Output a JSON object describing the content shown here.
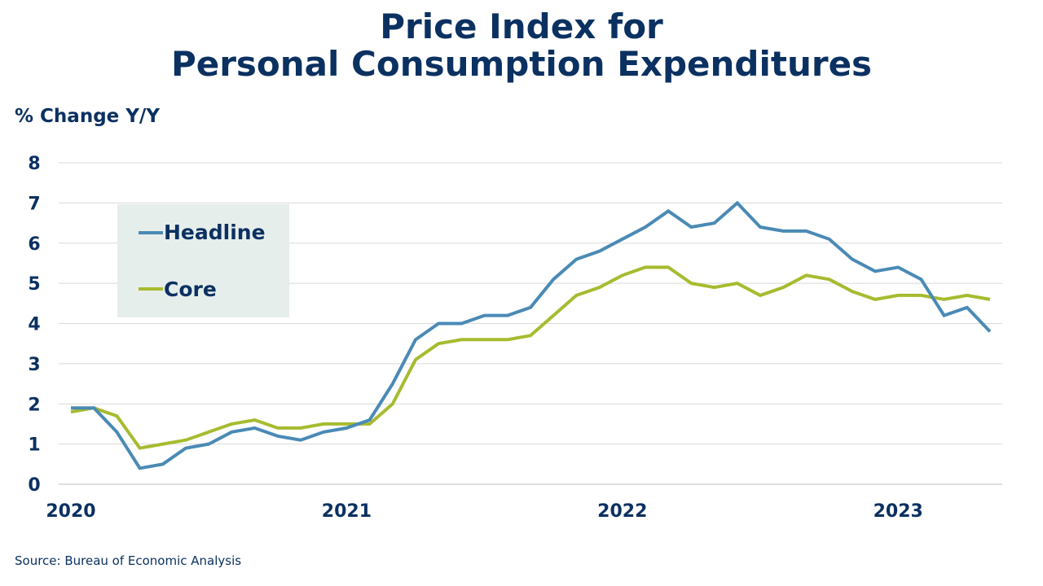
{
  "title_line1": "Price Index for",
  "title_line2": "Personal Consumption Expenditures",
  "ylabel": "% Change Y/Y",
  "source": "Source:  Bureau of Economic Analysis",
  "colors": {
    "headline": "#4a8ab5",
    "core": "#a7bb2f",
    "grid": "#d9d9d9",
    "legend_bg": "#e6eeec",
    "text": "#0b3161"
  },
  "chart_data": {
    "type": "line",
    "ylim": [
      0,
      8
    ],
    "yticks": [
      0,
      1,
      2,
      3,
      4,
      5,
      6,
      7,
      8
    ],
    "x_start": "2020-01",
    "x_end": "2023-05",
    "xticks": [
      {
        "label": "2020",
        "x": "2020-01"
      },
      {
        "label": "2021",
        "x": "2021-01"
      },
      {
        "label": "2022",
        "x": "2022-01"
      },
      {
        "label": "2023",
        "x": "2023-01"
      }
    ],
    "grid": true,
    "legend_placement": "top-left",
    "x": [
      "2020-01",
      "2020-02",
      "2020-03",
      "2020-04",
      "2020-05",
      "2020-06",
      "2020-07",
      "2020-08",
      "2020-09",
      "2020-10",
      "2020-11",
      "2020-12",
      "2021-01",
      "2021-02",
      "2021-03",
      "2021-04",
      "2021-05",
      "2021-06",
      "2021-07",
      "2021-08",
      "2021-09",
      "2021-10",
      "2021-11",
      "2021-12",
      "2022-01",
      "2022-02",
      "2022-03",
      "2022-04",
      "2022-05",
      "2022-06",
      "2022-07",
      "2022-08",
      "2022-09",
      "2022-10",
      "2022-11",
      "2022-12",
      "2023-01",
      "2023-02",
      "2023-03",
      "2023-04",
      "2023-05"
    ],
    "series": [
      {
        "name": "Headline",
        "values": [
          1.9,
          1.9,
          1.3,
          0.4,
          0.5,
          0.9,
          1.0,
          1.3,
          1.4,
          1.2,
          1.1,
          1.3,
          1.4,
          1.6,
          2.5,
          3.6,
          4.0,
          4.0,
          4.2,
          4.2,
          4.4,
          5.1,
          5.6,
          5.8,
          6.1,
          6.4,
          6.8,
          6.4,
          6.5,
          7.0,
          6.4,
          6.3,
          6.3,
          6.1,
          5.6,
          5.3,
          5.4,
          5.1,
          4.2,
          4.4,
          3.8
        ]
      },
      {
        "name": "Core",
        "values": [
          1.8,
          1.9,
          1.7,
          0.9,
          1.0,
          1.1,
          1.3,
          1.5,
          1.6,
          1.4,
          1.4,
          1.5,
          1.5,
          1.5,
          2.0,
          3.1,
          3.5,
          3.6,
          3.6,
          3.6,
          3.7,
          4.2,
          4.7,
          4.9,
          5.2,
          5.4,
          5.4,
          5.0,
          4.9,
          5.0,
          4.7,
          4.9,
          5.2,
          5.1,
          4.8,
          4.6,
          4.7,
          4.7,
          4.6,
          4.7,
          4.6
        ]
      }
    ]
  }
}
